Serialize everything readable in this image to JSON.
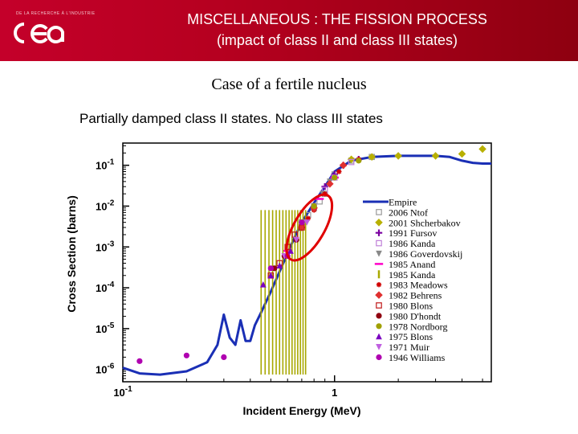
{
  "header": {
    "logo_small_text": "DE LA RECHERCHE À L'INDUSTRIE",
    "logo_text": "cea",
    "title_line1": "MISCELLANEOUS : THE FISSION PROCESS",
    "title_line2": "(impact of class II and class III states)"
  },
  "slide": {
    "subtitle": "Case of a fertile nucleus"
  },
  "colors": {
    "header_red": "#c4002a",
    "empire_blue": "#1a2fb5",
    "ellipse_red": "#e00000",
    "kanda_olive": "#a8a800"
  },
  "chart_data": {
    "type": "scatter",
    "title": "Partially damped class II states. No class III states",
    "xlabel": "Incident Energy (MeV)",
    "ylabel": "Cross Section (barns)",
    "xscale": "log",
    "yscale": "log",
    "xlim": [
      0.1,
      5.5
    ],
    "ylim": [
      5e-07,
      0.35
    ],
    "x_ticks": [
      {
        "value": 0.1,
        "label": "10-1"
      },
      {
        "value": 1,
        "label": "1"
      }
    ],
    "y_ticks": [
      {
        "value": 1e-06,
        "label": "10-6"
      },
      {
        "value": 1e-05,
        "label": "10-5"
      },
      {
        "value": 0.0001,
        "label": "10-4"
      },
      {
        "value": 0.001,
        "label": "10-3"
      },
      {
        "value": 0.01,
        "label": "10-2"
      },
      {
        "value": 0.1,
        "label": "10-1"
      }
    ],
    "legend_position": "right",
    "series": [
      {
        "name": "Empire",
        "kind": "line",
        "color": "#1a2fb5",
        "x": [
          0.1,
          0.12,
          0.15,
          0.2,
          0.25,
          0.28,
          0.3,
          0.32,
          0.34,
          0.36,
          0.38,
          0.4,
          0.42,
          0.45,
          0.5,
          0.55,
          0.6,
          0.65,
          0.7,
          0.8,
          0.9,
          1.0,
          1.2,
          1.5,
          2.0,
          2.5,
          3.0,
          3.5,
          4.0,
          4.5,
          5.0,
          5.5
        ],
        "y": [
          1.1e-06,
          8e-07,
          7.5e-07,
          9e-07,
          1.5e-06,
          4e-06,
          2.2e-05,
          6e-06,
          4e-06,
          1.6e-05,
          5e-06,
          5e-06,
          1.2e-05,
          2.5e-05,
          8e-05,
          0.00025,
          0.0007,
          0.0018,
          0.004,
          0.012,
          0.03,
          0.07,
          0.13,
          0.16,
          0.17,
          0.17,
          0.17,
          0.16,
          0.13,
          0.115,
          0.11,
          0.11
        ]
      },
      {
        "name": "2006 Ntof",
        "marker": "square",
        "color": "#9a9a9a",
        "x": [
          0.7,
          0.75,
          0.8,
          0.85,
          0.9,
          1.0,
          1.2,
          1.5
        ],
        "y": [
          0.004,
          0.006,
          0.009,
          0.013,
          0.02,
          0.06,
          0.13,
          0.16
        ]
      },
      {
        "name": "2001 Shcherbakov",
        "marker": "diamond",
        "color": "#b8b000",
        "x": [
          1.2,
          1.5,
          2.0,
          3.0,
          4.0,
          5.0
        ],
        "y": [
          0.14,
          0.16,
          0.17,
          0.17,
          0.19,
          0.25
        ]
      },
      {
        "name": "1991 Fursov",
        "marker": "plus",
        "color": "#7a00a0",
        "x": [
          0.9,
          1.0,
          1.1,
          1.3
        ],
        "y": [
          0.03,
          0.06,
          0.1,
          0.14
        ]
      },
      {
        "name": "1986 Kanda",
        "marker": "square",
        "color": "#c080d8",
        "x": [
          0.8,
          0.9,
          1.0,
          1.2
        ],
        "y": [
          0.01,
          0.025,
          0.05,
          0.12
        ]
      },
      {
        "name": "1986 Goverdovskij",
        "marker": "tri-down",
        "color": "#888888",
        "x": [
          0.72,
          0.8,
          0.88,
          0.95
        ],
        "y": [
          0.004,
          0.01,
          0.02,
          0.04
        ]
      },
      {
        "name": "1985 Anand",
        "marker": "dash",
        "color": "#ff00c8",
        "x": [
          0.6,
          0.7,
          0.85,
          1.0
        ],
        "y": [
          0.0008,
          0.003,
          0.015,
          0.05
        ]
      },
      {
        "name": "1985 Kanda",
        "marker": "vbar",
        "color": "#a8a800",
        "x": [
          0.45,
          0.47,
          0.49,
          0.51,
          0.53,
          0.55,
          0.57,
          0.59,
          0.61,
          0.63,
          0.65,
          0.67,
          0.69,
          0.71,
          0.73
        ],
        "y": [
          0.008,
          0.008,
          0.008,
          0.008,
          0.008,
          0.008,
          0.008,
          0.008,
          0.008,
          0.008,
          0.008,
          0.008,
          0.008,
          0.008,
          0.008
        ],
        "ylow": 7.5e-07
      },
      {
        "name": "1983 Meadows",
        "marker": "starburst",
        "color": "#d00000",
        "x": [
          0.75,
          0.8,
          0.9,
          1.05,
          1.3
        ],
        "y": [
          0.005,
          0.008,
          0.02,
          0.07,
          0.14
        ]
      },
      {
        "name": "1982 Behrens",
        "marker": "diamond",
        "color": "#e03030",
        "x": [
          0.7,
          0.8,
          0.95,
          1.1
        ],
        "y": [
          0.003,
          0.009,
          0.035,
          0.1
        ]
      },
      {
        "name": "1980 Blons",
        "marker": "square",
        "color": "#c01818",
        "x": [
          0.5,
          0.55,
          0.6,
          0.65,
          0.7
        ],
        "y": [
          0.0002,
          0.0004,
          0.001,
          0.002,
          0.003
        ]
      },
      {
        "name": "1980 D'hondt",
        "marker": "circle",
        "color": "#900010",
        "x": [
          0.52,
          0.58,
          0.66
        ],
        "y": [
          0.0003,
          0.0006,
          0.0015
        ]
      },
      {
        "name": "1978 Nordborg",
        "marker": "circle",
        "color": "#a0a000",
        "x": [
          0.8,
          1.0,
          1.3
        ],
        "y": [
          0.01,
          0.05,
          0.13
        ]
      },
      {
        "name": "1975 Blons",
        "marker": "tri-up",
        "color": "#7a00c0",
        "x": [
          0.46,
          0.5,
          0.55,
          0.62
        ],
        "y": [
          0.00012,
          0.0002,
          0.00035,
          0.0008
        ]
      },
      {
        "name": "1971 Muir",
        "marker": "tri-down",
        "color": "#c060e0",
        "x": [
          0.58,
          0.66,
          0.74
        ],
        "y": [
          0.0006,
          0.0015,
          0.004
        ]
      },
      {
        "name": "1946 Williams",
        "marker": "circle",
        "color": "#b000b0",
        "x": [
          0.12,
          0.2,
          0.3,
          0.5,
          0.6,
          0.7
        ],
        "y": [
          1.6e-06,
          2.2e-06,
          2e-06,
          0.0003,
          0.0006,
          0.004
        ]
      }
    ],
    "annotation": {
      "shape": "ellipse",
      "color": "#e00000",
      "cx": 0.76,
      "cy": 0.003,
      "label": ""
    }
  }
}
